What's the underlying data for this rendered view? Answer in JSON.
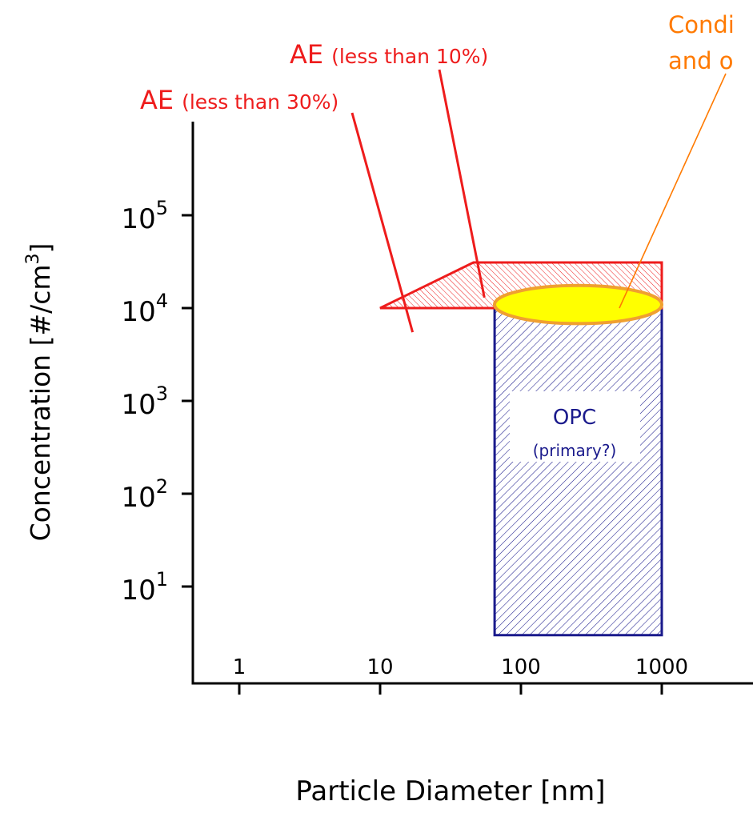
{
  "chart_data": {
    "type": "area",
    "xlabel": "Particle Diameter [nm]",
    "ylabel_main": "Concentration [#/cm",
    "ylabel_sup": "3",
    "ylabel_close": "]",
    "xscale": "log",
    "yscale": "log",
    "xlim": [
      0.5,
      5000
    ],
    "ylim": [
      0.3,
      1000000
    ],
    "x_ticks": [
      {
        "value": 1,
        "label": "1"
      },
      {
        "value": 10,
        "label": "10"
      },
      {
        "value": 100,
        "label": "100"
      },
      {
        "value": 1000,
        "label": "1000"
      }
    ],
    "y_ticks": [
      {
        "value": 10,
        "base": "10",
        "exp": "1"
      },
      {
        "value": 100,
        "base": "10",
        "exp": "2"
      },
      {
        "value": 1000,
        "base": "10",
        "exp": "3"
      },
      {
        "value": 10000,
        "base": "10",
        "exp": "4"
      },
      {
        "value": 100000,
        "base": "10",
        "exp": "5"
      }
    ],
    "regions": [
      {
        "id": "opc",
        "label": "OPC",
        "sublabel": "(primary?)",
        "color": "#1a1a8c",
        "points": [
          [
            65,
            3
          ],
          [
            1000,
            3
          ],
          [
            1000,
            10000
          ],
          [
            65,
            10000
          ]
        ]
      },
      {
        "id": "ae",
        "color": "#ee1c1c",
        "points": [
          [
            10,
            10000
          ],
          [
            46,
            31000
          ],
          [
            1000,
            31000
          ],
          [
            1000,
            10000
          ]
        ]
      }
    ],
    "ellipse": {
      "id": "conditioned",
      "center": [
        250,
        10700
      ],
      "x_range": [
        65,
        1000
      ],
      "y_range": [
        6800,
        17500
      ],
      "fill": "#ffff00",
      "stroke": "#f0a030"
    },
    "annotations": [
      {
        "id": "ae10",
        "main": "AE",
        "detail": "(less than 10%)",
        "color": "#ee1c1c",
        "target": [
          55,
          13000
        ]
      },
      {
        "id": "ae30",
        "main": "AE",
        "detail": "(less than 30%)",
        "color": "#ee1c1c",
        "target": [
          17,
          5500
        ]
      },
      {
        "id": "cond",
        "line1": "Condi",
        "line2": "and o",
        "color": "#ff7a00",
        "target": [
          500,
          10000
        ]
      }
    ],
    "colors": {
      "axis": "#000000",
      "ae": "#ee1c1c",
      "opc": "#1a1a8c",
      "ellipse_fill": "#ffff00",
      "ellipse_stroke": "#f0a030",
      "cond": "#ff7a00"
    }
  }
}
